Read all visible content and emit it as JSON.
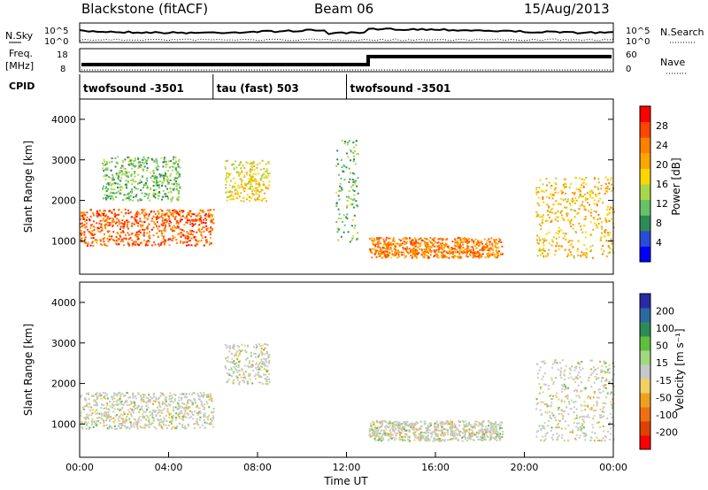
{
  "header": {
    "station": "Blackstone (fitACF)",
    "beam": "Beam 06",
    "date": "15/Aug/2013"
  },
  "top_panels": {
    "nsky_label": "N.Sky",
    "nsearch_label": "N.Search",
    "nsky_ticks": [
      "10^5",
      "10^0"
    ],
    "freq_label": "Freq.",
    "freq_unit": "[MHz]",
    "freq_ticks": [
      "18",
      "8"
    ],
    "nave_label": "Nave",
    "nave_ticks": [
      "60",
      "0"
    ],
    "cpid_label": "CPID"
  },
  "cpid_segments": [
    {
      "label": "twofsound -3501",
      "start_hour": 0
    },
    {
      "label": "tau (fast) 503",
      "start_hour": 6
    },
    {
      "label": "twofsound -3501",
      "start_hour": 12
    }
  ],
  "colorbars": {
    "power": {
      "label": "Power [dB]",
      "ticks": [
        "4",
        "8",
        "12",
        "16",
        "20",
        "24",
        "28"
      ],
      "colors": [
        "#0000ff",
        "#2a4bd7",
        "#2e8b57",
        "#66c266",
        "#a8d84a",
        "#ffd700",
        "#ffa500",
        "#ff7f00",
        "#ff4500",
        "#ff0000"
      ]
    },
    "velocity": {
      "label": "Velocity [m s⁻¹]",
      "ticks": [
        "200",
        "100",
        "50",
        "15",
        "-15",
        "-50",
        "-100",
        "-200"
      ],
      "colors": [
        "#2a2aa8",
        "#2a6aa0",
        "#2e8b57",
        "#5fbf3f",
        "#9fd87f",
        "#c8c8c8",
        "#f0d060",
        "#f0a020",
        "#f07010",
        "#e04000",
        "#ff0000"
      ]
    }
  },
  "chart_data": [
    {
      "type": "heatmap",
      "name": "Power",
      "xlabel": "",
      "ylabel": "Slant Range [km]",
      "x_range_hours": [
        0,
        24
      ],
      "ylim": [
        180,
        4500
      ],
      "y_ticks": [
        "1000",
        "2000",
        "3000",
        "4000"
      ],
      "colorbar": "Power [dB]",
      "regions": [
        {
          "t0": 0.0,
          "t1": 6.0,
          "r0": 900,
          "r1": 1800,
          "dB": 24
        },
        {
          "t0": 1.0,
          "t1": 4.5,
          "r0": 2000,
          "r1": 3100,
          "dB": 10
        },
        {
          "t0": 6.5,
          "t1": 8.5,
          "r0": 2000,
          "r1": 3000,
          "dB": 16
        },
        {
          "t0": 11.5,
          "t1": 12.5,
          "r0": 1000,
          "r1": 3500,
          "dB": 10
        },
        {
          "t0": 13.0,
          "t1": 19.0,
          "r0": 600,
          "r1": 1100,
          "dB": 22
        },
        {
          "t0": 20.5,
          "t1": 24.0,
          "r0": 600,
          "r1": 2600,
          "dB": 18
        }
      ]
    },
    {
      "type": "heatmap",
      "name": "Velocity",
      "xlabel": "Time UT",
      "ylabel": "Slant Range [km]",
      "x_range_hours": [
        0,
        24
      ],
      "ylim": [
        180,
        4500
      ],
      "y_ticks": [
        "1000",
        "2000",
        "3000",
        "4000"
      ],
      "x_ticks": [
        "00:00",
        "04:00",
        "08:00",
        "12:00",
        "16:00",
        "20:00",
        "00:00"
      ],
      "colorbar": "Velocity [m s⁻¹]",
      "regions": [
        {
          "t0": 0.0,
          "t1": 6.0,
          "r0": 900,
          "r1": 1800,
          "v": 0
        },
        {
          "t0": 6.5,
          "t1": 8.5,
          "r0": 2000,
          "r1": 3000,
          "v": 5
        },
        {
          "t0": 13.0,
          "t1": 19.0,
          "r0": 600,
          "r1": 1100,
          "v": 0
        },
        {
          "t0": 20.5,
          "t1": 24.0,
          "r0": 600,
          "r1": 2600,
          "v": -10
        }
      ]
    }
  ]
}
